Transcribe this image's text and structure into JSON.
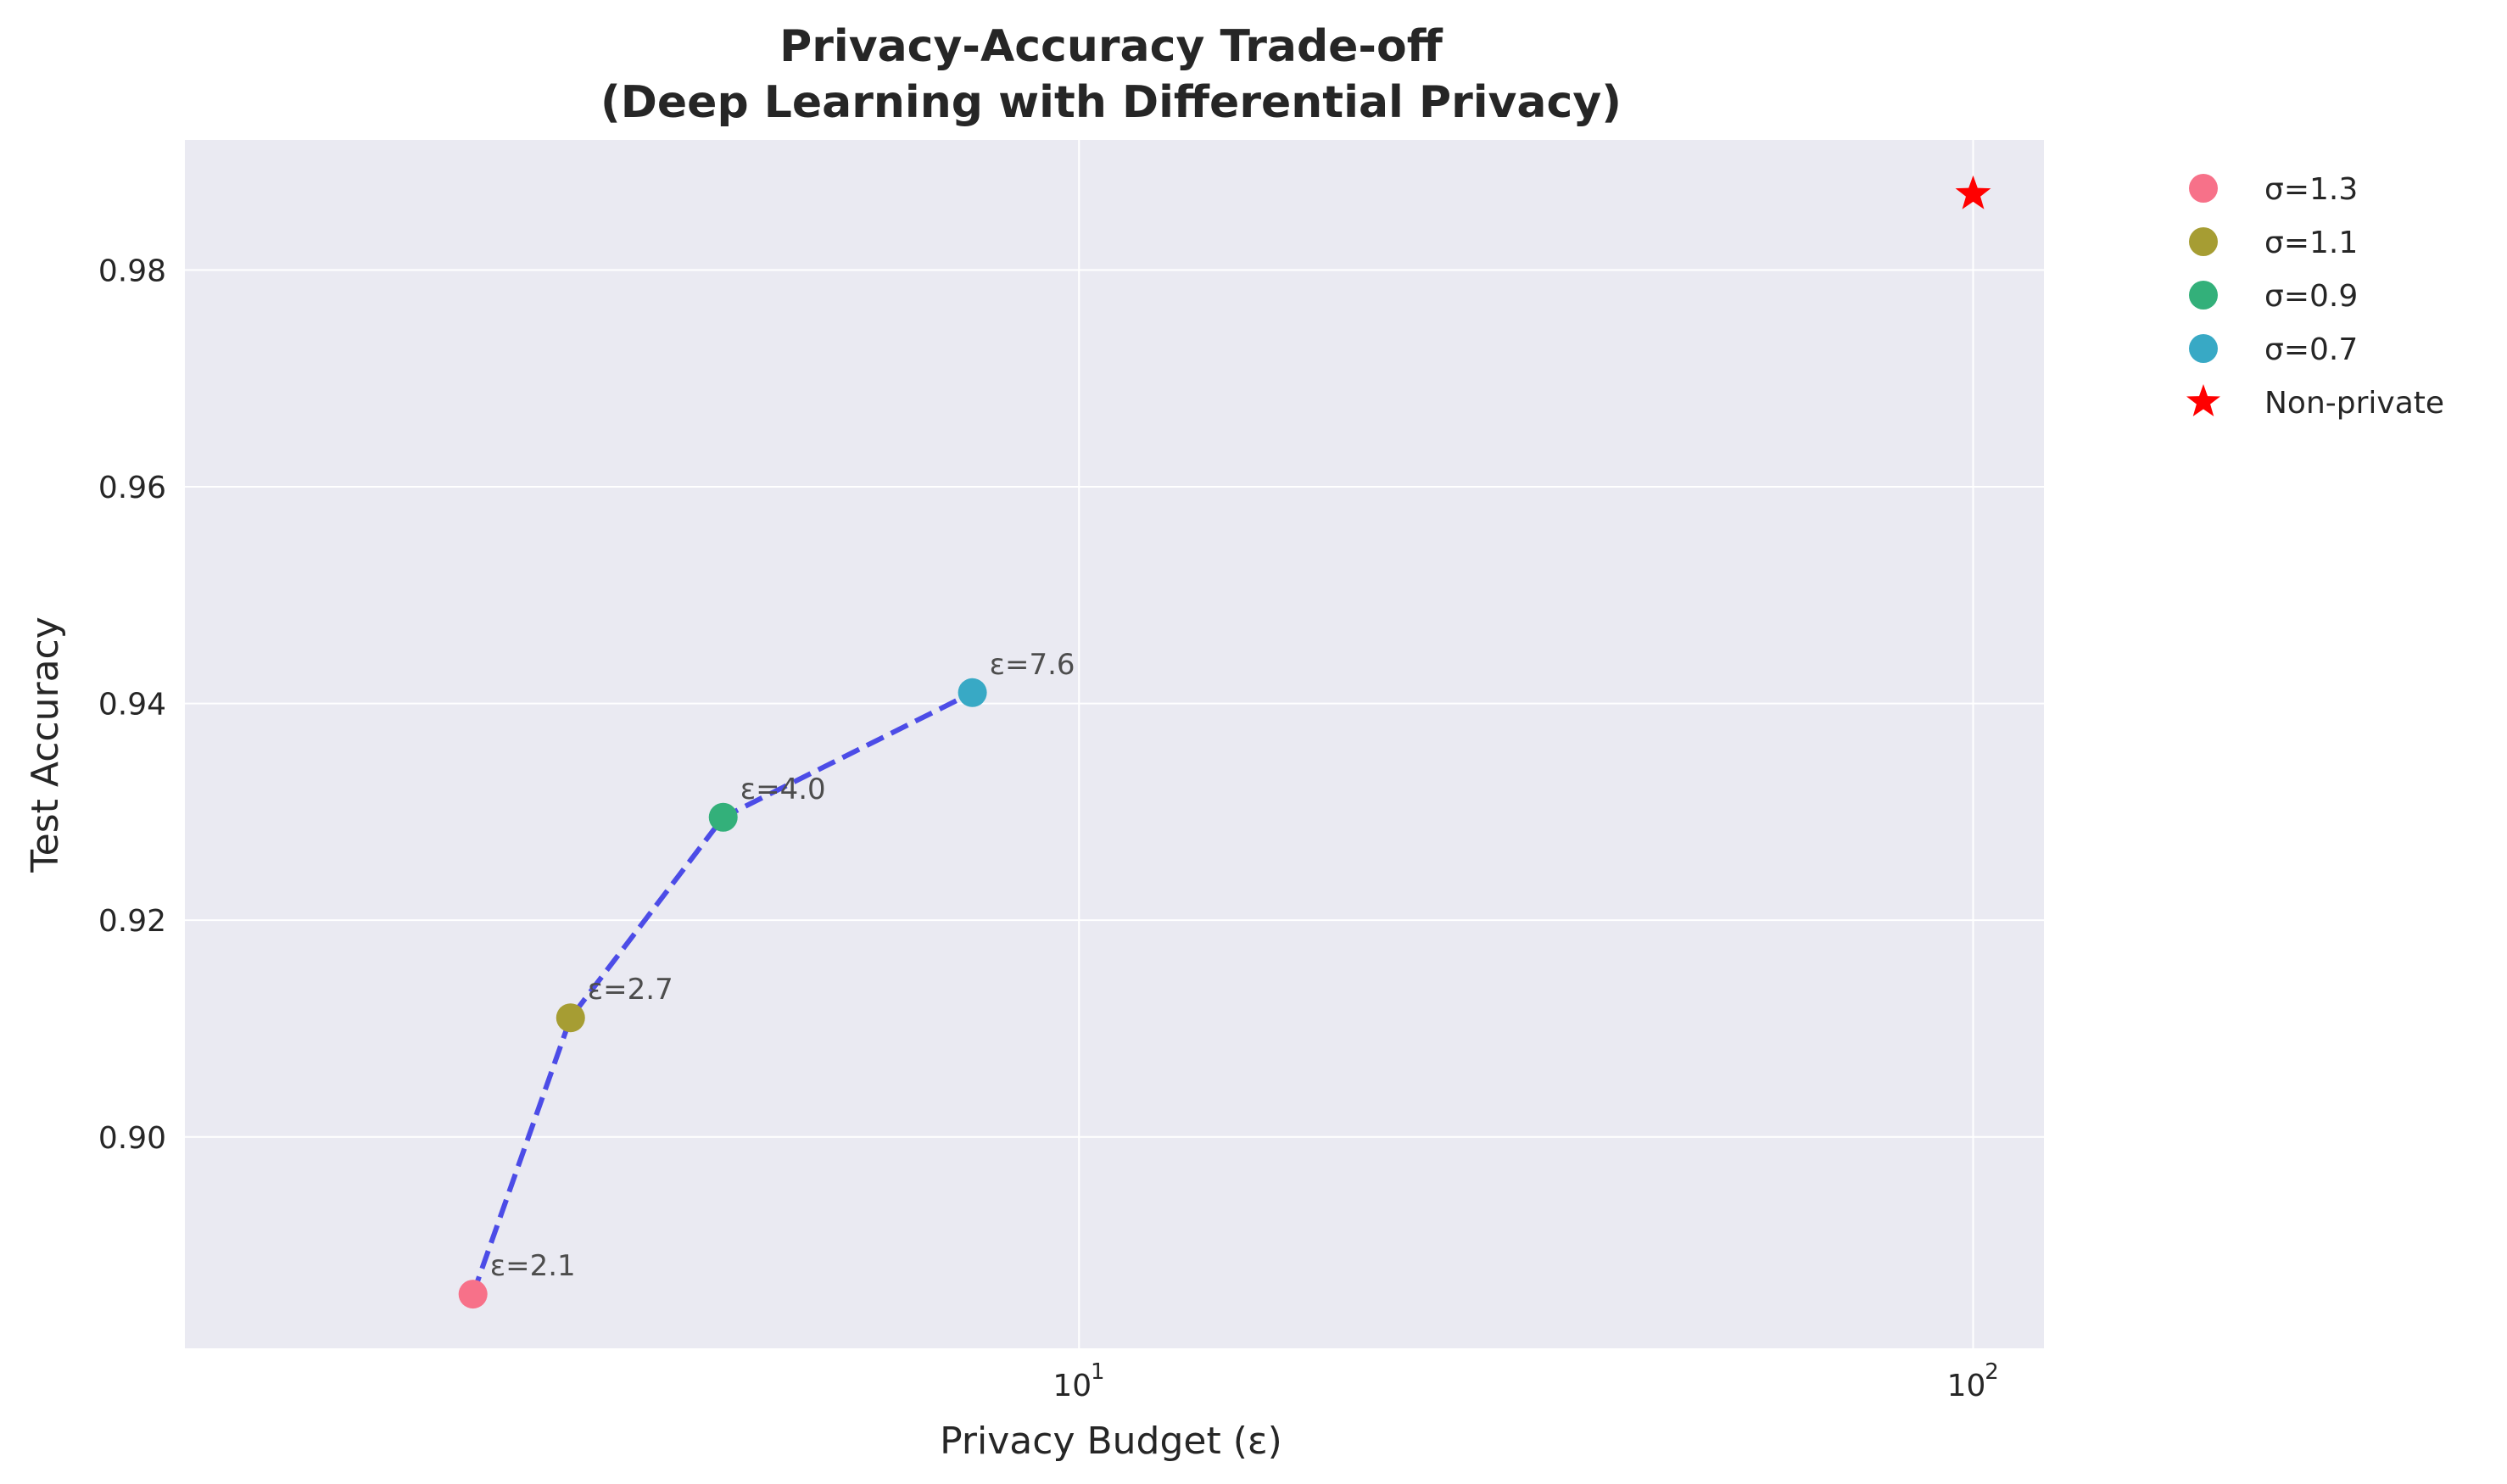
{
  "chart_data": {
    "type": "scatter",
    "title_line1": "Privacy-Accuracy Trade-off",
    "title_line2": "(Deep Learning with Differential Privacy)",
    "xlabel": "Privacy Budget (ε)",
    "ylabel": "Test Accuracy",
    "xscale": "log",
    "xlim": [
      1.0,
      120
    ],
    "ylim": [
      0.8805,
      0.992
    ],
    "grid": true,
    "legend_position": "outside-right",
    "background_color": "#eaeaf2",
    "grid_color": "#ffffff",
    "x_ticks": [
      {
        "base": "10",
        "exp": "1",
        "value": 10
      },
      {
        "base": "10",
        "exp": "2",
        "value": 100
      }
    ],
    "y_ticks": [
      {
        "label": "0.90",
        "value": 0.9
      },
      {
        "label": "0.92",
        "value": 0.92
      },
      {
        "label": "0.94",
        "value": 0.94
      },
      {
        "label": "0.96",
        "value": 0.96
      },
      {
        "label": "0.98",
        "value": 0.98
      }
    ],
    "series": [
      {
        "name": "σ=1.3",
        "x": 2.1,
        "y": 0.8855,
        "color": "#f77189",
        "marker": "circle",
        "annotation": "ε=2.1"
      },
      {
        "name": "σ=1.1",
        "x": 2.7,
        "y": 0.911,
        "color": "#a69d33",
        "marker": "circle",
        "annotation": "ε=2.7"
      },
      {
        "name": "σ=0.9",
        "x": 4.0,
        "y": 0.9295,
        "color": "#33b07a",
        "marker": "circle",
        "annotation": "ε=4.0"
      },
      {
        "name": "σ=0.7",
        "x": 7.6,
        "y": 0.941,
        "color": "#38a9c5",
        "marker": "circle",
        "annotation": "ε=7.6"
      },
      {
        "name": "Non-private",
        "x": 100,
        "y": 0.987,
        "color": "#ff0000",
        "marker": "star",
        "annotation": ""
      }
    ],
    "trend_line": {
      "x": [
        2.1,
        2.7,
        4.0,
        7.6
      ],
      "y": [
        0.8855,
        0.911,
        0.9295,
        0.941
      ],
      "color": "#3b3be6",
      "style": "dashed"
    }
  }
}
